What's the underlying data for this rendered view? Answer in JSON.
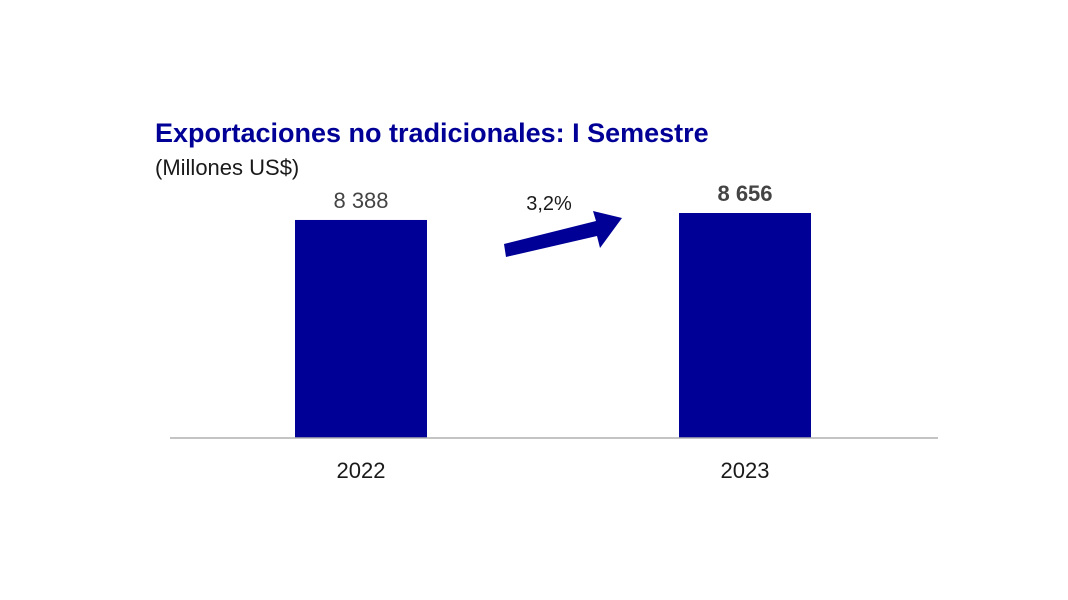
{
  "chart_data": {
    "type": "bar",
    "title": "Exportaciones no tradicionales: I Semestre",
    "subtitle": "(Millones US$)",
    "categories": [
      "2022",
      "2023"
    ],
    "values": [
      8388,
      8656
    ],
    "value_labels": [
      "8 388",
      "8 656"
    ],
    "ylim": [
      0,
      8656
    ],
    "grid": false,
    "annotation": {
      "text": "3,2%",
      "type": "growth-arrow"
    }
  },
  "colors": {
    "bar": "#000096",
    "title": "#000096",
    "arrow": "#000096",
    "axis": "#b0b0b0"
  }
}
